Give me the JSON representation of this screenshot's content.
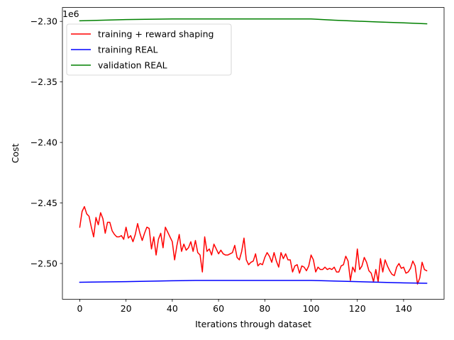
{
  "chart_data": {
    "type": "line",
    "xlabel": "Iterations through dataset",
    "ylabel": "Cost",
    "offset_text": "1e6",
    "xlim": [
      -7.5,
      157.5
    ],
    "ylim": [
      -2.5295,
      -2.2885
    ],
    "xticks": [
      0,
      20,
      40,
      60,
      80,
      100,
      120,
      140
    ],
    "xtick_labels": [
      "0",
      "20",
      "40",
      "60",
      "80",
      "100",
      "120",
      "140"
    ],
    "yticks": [
      -2.5,
      -2.45,
      -2.4,
      -2.35,
      -2.3
    ],
    "ytick_labels": [
      "−2.50",
      "−2.45",
      "−2.40",
      "−2.35",
      "−2.30"
    ],
    "grid": false,
    "legend_position": "upper left",
    "series": [
      {
        "name": "training + reward shaping",
        "color": "#ff0000",
        "x": [
          0,
          1,
          2,
          3,
          4,
          5,
          6,
          7,
          8,
          9,
          10,
          11,
          12,
          13,
          14,
          15,
          16,
          17,
          18,
          19,
          20,
          21,
          22,
          23,
          24,
          25,
          26,
          27,
          28,
          29,
          30,
          31,
          32,
          33,
          34,
          35,
          36,
          37,
          38,
          39,
          40,
          41,
          42,
          43,
          44,
          45,
          46,
          47,
          48,
          49,
          50,
          51,
          52,
          53,
          54,
          55,
          56,
          57,
          58,
          59,
          60,
          61,
          62,
          63,
          64,
          65,
          66,
          67,
          68,
          69,
          70,
          71,
          72,
          73,
          74,
          75,
          76,
          77,
          78,
          79,
          80,
          81,
          82,
          83,
          84,
          85,
          86,
          87,
          88,
          89,
          90,
          91,
          92,
          93,
          94,
          95,
          96,
          97,
          98,
          99,
          100,
          101,
          102,
          103,
          104,
          105,
          106,
          107,
          108,
          109,
          110,
          111,
          112,
          113,
          114,
          115,
          116,
          117,
          118,
          119,
          120,
          121,
          122,
          123,
          124,
          125,
          126,
          127,
          128,
          129,
          130,
          131,
          132,
          133,
          134,
          135,
          136,
          137,
          138,
          139,
          140,
          141,
          142,
          143,
          144,
          145,
          146,
          147,
          148,
          149,
          150
        ],
        "y": [
          -2.47,
          -2.457,
          -2.453,
          -2.459,
          -2.461,
          -2.47,
          -2.478,
          -2.462,
          -2.468,
          -2.458,
          -2.463,
          -2.475,
          -2.466,
          -2.466,
          -2.473,
          -2.476,
          -2.478,
          -2.478,
          -2.477,
          -2.48,
          -2.47,
          -2.479,
          -2.477,
          -2.482,
          -2.476,
          -2.467,
          -2.475,
          -2.481,
          -2.475,
          -2.47,
          -2.471,
          -2.488,
          -2.478,
          -2.493,
          -2.48,
          -2.475,
          -2.487,
          -2.47,
          -2.474,
          -2.478,
          -2.482,
          -2.497,
          -2.485,
          -2.476,
          -2.49,
          -2.484,
          -2.489,
          -2.487,
          -2.482,
          -2.49,
          -2.481,
          -2.491,
          -2.493,
          -2.507,
          -2.478,
          -2.49,
          -2.488,
          -2.493,
          -2.484,
          -2.488,
          -2.492,
          -2.489,
          -2.492,
          -2.493,
          -2.493,
          -2.492,
          -2.491,
          -2.485,
          -2.495,
          -2.497,
          -2.49,
          -2.479,
          -2.497,
          -2.501,
          -2.499,
          -2.498,
          -2.492,
          -2.502,
          -2.5,
          -2.501,
          -2.495,
          -2.491,
          -2.494,
          -2.499,
          -2.491,
          -2.498,
          -2.503,
          -2.491,
          -2.496,
          -2.492,
          -2.497,
          -2.497,
          -2.507,
          -2.502,
          -2.501,
          -2.508,
          -2.502,
          -2.503,
          -2.506,
          -2.502,
          -2.493,
          -2.497,
          -2.507,
          -2.503,
          -2.505,
          -2.505,
          -2.503,
          -2.505,
          -2.504,
          -2.505,
          -2.503,
          -2.507,
          -2.507,
          -2.502,
          -2.501,
          -2.494,
          -2.498,
          -2.514,
          -2.503,
          -2.507,
          -2.488,
          -2.505,
          -2.502,
          -2.495,
          -2.499,
          -2.506,
          -2.508,
          -2.515,
          -2.505,
          -2.515,
          -2.496,
          -2.507,
          -2.497,
          -2.502,
          -2.506,
          -2.509,
          -2.51,
          -2.503,
          -2.5,
          -2.504,
          -2.503,
          -2.508,
          -2.507,
          -2.504,
          -2.498,
          -2.502,
          -2.517,
          -2.512,
          -2.499,
          -2.505,
          -2.506
        ]
      },
      {
        "name": "training REAL",
        "color": "#0000ff",
        "x": [
          0,
          20,
          40,
          50,
          60,
          80,
          100,
          110,
          120,
          130,
          140,
          150
        ],
        "y": [
          -2.5155,
          -2.515,
          -2.5143,
          -2.514,
          -2.514,
          -2.514,
          -2.514,
          -2.5145,
          -2.515,
          -2.5155,
          -2.516,
          -2.5163
        ]
      },
      {
        "name": "validation REAL",
        "color": "#008000",
        "x": [
          0,
          20,
          40,
          60,
          80,
          100,
          110,
          120,
          130,
          140,
          150
        ],
        "y": [
          -2.2995,
          -2.2985,
          -2.298,
          -2.298,
          -2.298,
          -2.298,
          -2.299,
          -2.2998,
          -2.3005,
          -2.3012,
          -2.302
        ]
      }
    ]
  }
}
